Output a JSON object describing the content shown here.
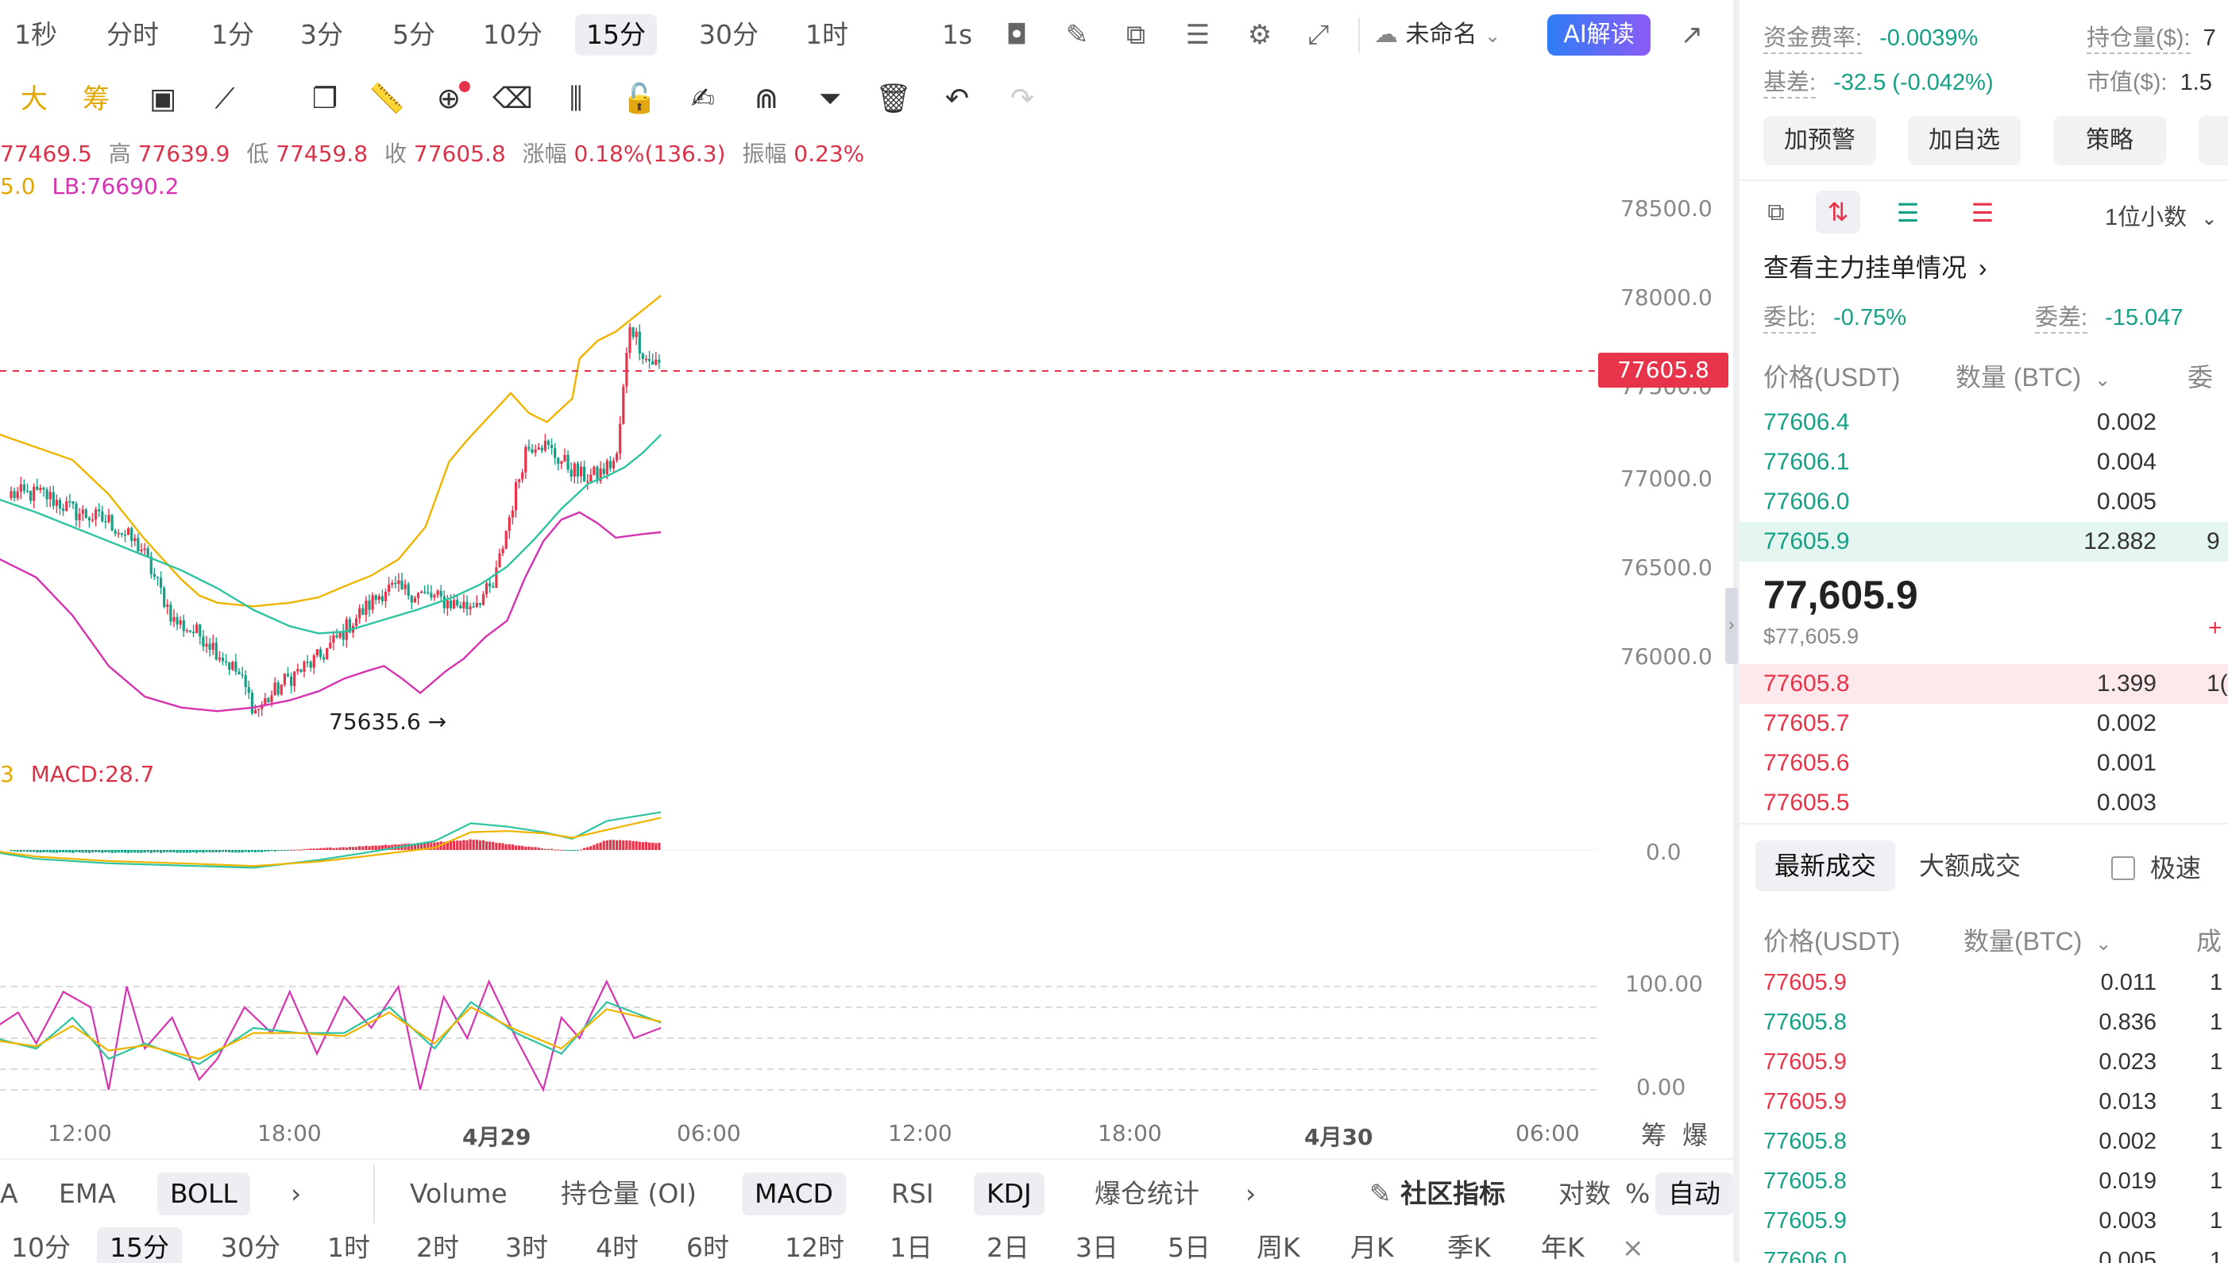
{
  "toolbar": {
    "timeframes": [
      "1秒",
      "分时",
      "1分",
      "3分",
      "5分",
      "10分",
      "15分",
      "30分",
      "1时",
      "1s"
    ],
    "active_timeframe": "15分",
    "layout_name": "未命名",
    "ai_button": "AI解读"
  },
  "drawing_toolbar": {
    "labels": [
      "大",
      "筹"
    ]
  },
  "ohlc": {
    "open": "77469.5",
    "high_label": "高",
    "high": "77639.9",
    "low_label": "低",
    "low": "77459.8",
    "close_label": "收",
    "close": "77605.8",
    "change_label": "涨幅",
    "change": "0.18%(136.3)",
    "amplitude_label": "振幅",
    "amplitude": "0.23%"
  },
  "boll_info": {
    "ub_partial": "5.0",
    "lb": "LB:76690.2"
  },
  "macd_info": {
    "prefix": "3",
    "macd": "MACD:28.7"
  },
  "price_axis": [
    "78500.0",
    "78000.0",
    "77500.0",
    "77000.0",
    "76500.0",
    "76000.0"
  ],
  "last_price": "77605.8",
  "min_marker": "75635.6",
  "macd_axis": "0.0",
  "kdj_axis": [
    "100.00",
    "0.00"
  ],
  "time_axis": [
    "12:00",
    "18:00",
    "4月29",
    "06:00",
    "12:00",
    "18:00",
    "4月30",
    "06:00"
  ],
  "corner_labels": [
    "筹",
    "爆"
  ],
  "indicators": {
    "main": [
      "EMA",
      "BOLL"
    ],
    "sub": [
      "Volume",
      "持仓量 (OI)",
      "MACD",
      "RSI",
      "KDJ",
      "爆仓统计"
    ],
    "active": [
      "BOLL",
      "MACD",
      "KDJ"
    ],
    "community": "社区指标",
    "log": "对数",
    "percent": "%",
    "auto": "自动"
  },
  "periods": [
    "10分",
    "15分",
    "30分",
    "1时",
    "2时",
    "3时",
    "4时",
    "6时",
    "12时",
    "1日",
    "2日",
    "3日",
    "5日",
    "周K",
    "月K",
    "季K",
    "年K"
  ],
  "active_period": "15分",
  "panel": {
    "funding_label": "资金费率:",
    "funding_value": "-0.0039%",
    "oi_label": "持仓量($):",
    "oi_value": "7",
    "basis_label": "基差:",
    "basis_value": "-32.5 (-0.042%)",
    "mcap_label": "市值($):",
    "mcap_value": "1.5",
    "buttons": [
      "加预警",
      "加自选",
      "策略"
    ],
    "decimals": "1位小数",
    "main_orders": "查看主力挂单情况",
    "ratio_label": "委比:",
    "ratio_value": "-0.75%",
    "diff_label": "委差:",
    "diff_value": "-15.047",
    "ob_headers": [
      "价格(USDT)",
      "数量 (BTC)",
      "委"
    ],
    "asks": [
      {
        "price": "77606.4",
        "qty": "0.002",
        "cum": ""
      },
      {
        "price": "77606.1",
        "qty": "0.004",
        "cum": ""
      },
      {
        "price": "77606.0",
        "qty": "0.005",
        "cum": ""
      },
      {
        "price": "77605.9",
        "qty": "12.882",
        "cum": "9"
      }
    ],
    "mid_price": "77,605.9",
    "mid_usd": "$77,605.9",
    "mid_plus": "+",
    "bids": [
      {
        "price": "77605.8",
        "qty": "1.399",
        "cum": "1("
      },
      {
        "price": "77605.7",
        "qty": "0.002",
        "cum": ""
      },
      {
        "price": "77605.6",
        "qty": "0.001",
        "cum": ""
      },
      {
        "price": "77605.5",
        "qty": "0.003",
        "cum": ""
      }
    ],
    "trade_tabs": [
      "最新成交",
      "大额成交"
    ],
    "fast_label": "极速",
    "trade_headers": [
      "价格(USDT)",
      "数量(BTC)",
      "成"
    ],
    "trades": [
      {
        "price": "77605.9",
        "qty": "0.011",
        "side": "sell",
        "c": "1"
      },
      {
        "price": "77605.8",
        "qty": "0.836",
        "side": "buy",
        "c": "1"
      },
      {
        "price": "77605.9",
        "qty": "0.023",
        "side": "sell",
        "c": "1"
      },
      {
        "price": "77605.9",
        "qty": "0.013",
        "side": "sell",
        "c": "1"
      },
      {
        "price": "77605.8",
        "qty": "0.002",
        "side": "buy",
        "c": "1"
      },
      {
        "price": "77605.8",
        "qty": "0.019",
        "side": "buy",
        "c": "1"
      },
      {
        "price": "77605.9",
        "qty": "0.003",
        "side": "buy",
        "c": "1"
      },
      {
        "price": "77606.0",
        "qty": "0.005",
        "side": "buy",
        "c": "1"
      }
    ]
  },
  "colors": {
    "up": "#e8344a",
    "down": "#16a085",
    "boll_mid": "#2ec4a0",
    "boll_up": "#f0b400",
    "boll_lb": "#d633b0"
  },
  "chart_data": {
    "type": "candlestick",
    "interval": "15m",
    "price_range": [
      75500,
      78700
    ],
    "min_price": 75635.6,
    "last_price": 77605.8,
    "boll_mid_path": [
      [
        -3,
        76850
      ],
      [
        0,
        76870
      ],
      [
        20,
        76800
      ],
      [
        40,
        76720
      ],
      [
        60,
        76640
      ],
      [
        80,
        76560
      ],
      [
        100,
        76480
      ],
      [
        120,
        76380
      ],
      [
        140,
        76260
      ],
      [
        160,
        76170
      ],
      [
        176,
        76130
      ],
      [
        190,
        76140
      ],
      [
        210,
        76200
      ],
      [
        230,
        76260
      ],
      [
        250,
        76330
      ],
      [
        265,
        76400
      ],
      [
        280,
        76500
      ],
      [
        295,
        76650
      ],
      [
        310,
        76820
      ],
      [
        325,
        76960
      ],
      [
        335,
        77000
      ],
      [
        345,
        77050
      ],
      [
        355,
        77130
      ],
      [
        365,
        77230
      ]
    ],
    "boll_up_path": [
      [
        -3,
        77220
      ],
      [
        0,
        77230
      ],
      [
        20,
        77160
      ],
      [
        40,
        77090
      ],
      [
        60,
        76900
      ],
      [
        80,
        76650
      ],
      [
        100,
        76430
      ],
      [
        110,
        76340
      ],
      [
        120,
        76300
      ],
      [
        140,
        76280
      ],
      [
        160,
        76300
      ],
      [
        176,
        76330
      ],
      [
        190,
        76390
      ],
      [
        205,
        76450
      ],
      [
        220,
        76540
      ],
      [
        235,
        76720
      ],
      [
        248,
        77080
      ],
      [
        258,
        77200
      ],
      [
        270,
        77330
      ],
      [
        282,
        77460
      ],
      [
        292,
        77350
      ],
      [
        302,
        77300
      ],
      [
        316,
        77430
      ],
      [
        320,
        77650
      ],
      [
        330,
        77750
      ],
      [
        340,
        77800
      ],
      [
        350,
        77880
      ],
      [
        365,
        78000
      ]
    ],
    "boll_lb_path": [
      [
        -3,
        76500
      ],
      [
        0,
        76540
      ],
      [
        20,
        76440
      ],
      [
        40,
        76230
      ],
      [
        60,
        75950
      ],
      [
        80,
        75780
      ],
      [
        100,
        75720
      ],
      [
        120,
        75700
      ],
      [
        140,
        75720
      ],
      [
        160,
        75760
      ],
      [
        176,
        75810
      ],
      [
        190,
        75880
      ],
      [
        202,
        75920
      ],
      [
        212,
        75950
      ],
      [
        222,
        75880
      ],
      [
        232,
        75800
      ],
      [
        246,
        75920
      ],
      [
        256,
        75990
      ],
      [
        268,
        76110
      ],
      [
        280,
        76200
      ],
      [
        290,
        76440
      ],
      [
        300,
        76640
      ],
      [
        310,
        76760
      ],
      [
        320,
        76800
      ],
      [
        330,
        76740
      ],
      [
        340,
        76660
      ],
      [
        355,
        76680
      ],
      [
        365,
        76690
      ]
    ],
    "macd_dif": [
      [
        -3,
        -10
      ],
      [
        20,
        -40
      ],
      [
        60,
        -60
      ],
      [
        100,
        -70
      ],
      [
        140,
        -80
      ],
      [
        176,
        -45
      ],
      [
        200,
        -15
      ],
      [
        240,
        40
      ],
      [
        260,
        120
      ],
      [
        280,
        105
      ],
      [
        300,
        80
      ],
      [
        316,
        50
      ],
      [
        335,
        130
      ],
      [
        365,
        170
      ]
    ],
    "macd_dea": [
      [
        -3,
        -5
      ],
      [
        20,
        -30
      ],
      [
        60,
        -50
      ],
      [
        100,
        -60
      ],
      [
        140,
        -72
      ],
      [
        176,
        -52
      ],
      [
        200,
        -30
      ],
      [
        240,
        10
      ],
      [
        260,
        80
      ],
      [
        280,
        85
      ],
      [
        300,
        75
      ],
      [
        316,
        55
      ],
      [
        335,
        90
      ],
      [
        365,
        145
      ]
    ],
    "kdj_j": [
      [
        -3,
        60
      ],
      [
        10,
        75
      ],
      [
        20,
        45
      ],
      [
        35,
        95
      ],
      [
        50,
        80
      ],
      [
        60,
        0
      ],
      [
        70,
        100
      ],
      [
        80,
        40
      ],
      [
        95,
        70
      ],
      [
        110,
        10
      ],
      [
        120,
        30
      ],
      [
        135,
        80
      ],
      [
        150,
        55
      ],
      [
        160,
        95
      ],
      [
        175,
        35
      ],
      [
        190,
        90
      ],
      [
        205,
        60
      ],
      [
        220,
        100
      ],
      [
        232,
        0
      ],
      [
        245,
        90
      ],
      [
        258,
        50
      ],
      [
        270,
        105
      ],
      [
        285,
        50
      ],
      [
        300,
        0
      ],
      [
        310,
        70
      ],
      [
        320,
        50
      ],
      [
        335,
        105
      ],
      [
        350,
        50
      ],
      [
        365,
        60
      ]
    ],
    "kdj_k": [
      [
        -3,
        50
      ],
      [
        20,
        40
      ],
      [
        40,
        70
      ],
      [
        60,
        30
      ],
      [
        80,
        45
      ],
      [
        110,
        25
      ],
      [
        140,
        60
      ],
      [
        165,
        55
      ],
      [
        190,
        55
      ],
      [
        215,
        80
      ],
      [
        240,
        40
      ],
      [
        260,
        85
      ],
      [
        285,
        55
      ],
      [
        310,
        35
      ],
      [
        335,
        85
      ],
      [
        365,
        65
      ]
    ],
    "kdj_d": [
      [
        -3,
        48
      ],
      [
        20,
        42
      ],
      [
        40,
        62
      ],
      [
        60,
        38
      ],
      [
        80,
        43
      ],
      [
        110,
        30
      ],
      [
        140,
        55
      ],
      [
        165,
        55
      ],
      [
        190,
        52
      ],
      [
        215,
        75
      ],
      [
        240,
        45
      ],
      [
        260,
        80
      ],
      [
        285,
        58
      ],
      [
        310,
        40
      ],
      [
        335,
        78
      ],
      [
        365,
        66
      ]
    ],
    "x_ticks": [
      "12:00",
      "18:00",
      "4月29",
      "06:00",
      "12:00",
      "18:00",
      "4月30",
      "06:00"
    ]
  }
}
